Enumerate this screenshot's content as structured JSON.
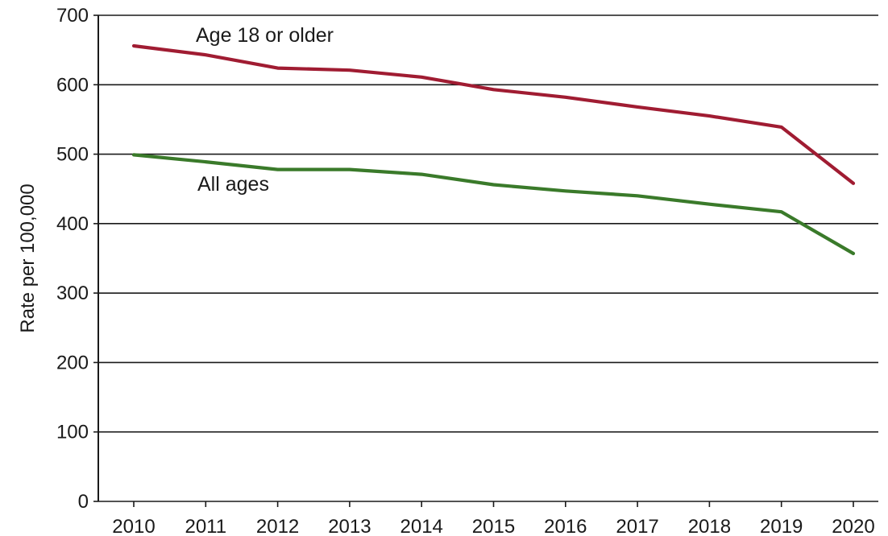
{
  "chart_data": {
    "type": "line",
    "title": "",
    "xlabel": "",
    "ylabel": "Rate per 100,000",
    "x": [
      "2010",
      "2011",
      "2012",
      "2013",
      "2014",
      "2015",
      "2016",
      "2017",
      "2018",
      "2019",
      "2020"
    ],
    "ylim": [
      0,
      700
    ],
    "yticks": [
      "0",
      "100",
      "200",
      "300",
      "400",
      "500",
      "600",
      "700"
    ],
    "grid": true,
    "legend": "none (series labeled inline)",
    "series": [
      {
        "name": "Age 18 or older",
        "color": "#a01c32",
        "values": [
          656,
          643,
          624,
          621,
          611,
          593,
          582,
          568,
          555,
          539,
          458
        ]
      },
      {
        "name": "All ages",
        "color": "#3a7a2a",
        "values": [
          499,
          489,
          478,
          478,
          471,
          456,
          447,
          440,
          428,
          417,
          357
        ]
      }
    ]
  }
}
